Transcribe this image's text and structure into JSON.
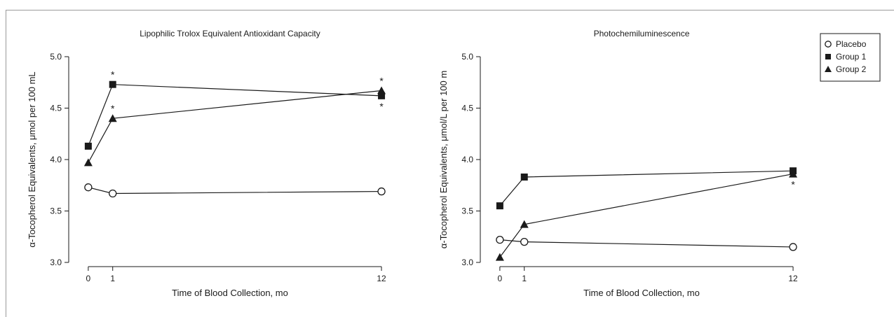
{
  "legend": [
    {
      "label": "Placebo",
      "marker": "circle-open"
    },
    {
      "label": "Group 1",
      "marker": "square-filled"
    },
    {
      "label": "Group 2",
      "marker": "triangle-filled"
    }
  ],
  "chart_data": [
    {
      "type": "line",
      "title": "Lipophilic Trolox Equivalent Antioxidant Capacity",
      "xlabel": "Time of Blood Collection, mo",
      "ylabel": "α-Tocopherol Equivalents, μmol per 100 mL",
      "x": [
        0,
        1,
        12
      ],
      "xticks": [
        "0",
        "1",
        "12"
      ],
      "ylim": [
        3.0,
        5.0
      ],
      "yticks": [
        "3.0",
        "3.5",
        "4.0",
        "4.5",
        "5.0"
      ],
      "grid": false,
      "series": [
        {
          "name": "Placebo",
          "marker": "circle-open",
          "values": [
            3.73,
            3.67,
            3.69
          ],
          "stars": [
            false,
            false,
            false
          ],
          "star_pos": [
            "",
            "",
            ""
          ]
        },
        {
          "name": "Group 1",
          "marker": "square-filled",
          "values": [
            4.13,
            4.73,
            4.62
          ],
          "stars": [
            false,
            true,
            true
          ],
          "star_pos": [
            "",
            "above",
            "below"
          ]
        },
        {
          "name": "Group 2",
          "marker": "triangle-filled",
          "values": [
            3.97,
            4.4,
            4.67
          ],
          "stars": [
            false,
            true,
            true
          ],
          "star_pos": [
            "",
            "above",
            "above"
          ]
        }
      ],
      "annotation_symbol": "*"
    },
    {
      "type": "line",
      "title": "Photochemiluminescence",
      "xlabel": "Time of Blood Collection, mo",
      "ylabel": "α-Tocopherol Equivalents, μmol/L per 100 m",
      "x": [
        0,
        1,
        12
      ],
      "xticks": [
        "0",
        "1",
        "12"
      ],
      "ylim": [
        3.0,
        5.0
      ],
      "yticks": [
        "3.0",
        "3.5",
        "4.0",
        "4.5",
        "5.0"
      ],
      "grid": false,
      "series": [
        {
          "name": "Placebo",
          "marker": "circle-open",
          "values": [
            3.22,
            3.2,
            3.15
          ],
          "stars": [
            false,
            false,
            false
          ],
          "star_pos": [
            "",
            "",
            ""
          ]
        },
        {
          "name": "Group 1",
          "marker": "square-filled",
          "values": [
            3.55,
            3.83,
            3.89
          ],
          "stars": [
            false,
            false,
            false
          ],
          "star_pos": [
            "",
            "",
            ""
          ]
        },
        {
          "name": "Group 2",
          "marker": "triangle-filled",
          "values": [
            3.05,
            3.37,
            3.86
          ],
          "stars": [
            false,
            false,
            true
          ],
          "star_pos": [
            "",
            "",
            "below"
          ]
        }
      ],
      "annotation_symbol": "*"
    }
  ]
}
